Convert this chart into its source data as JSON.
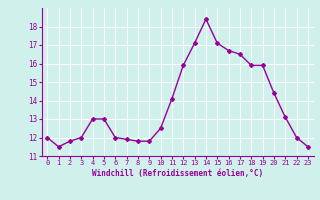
{
  "x": [
    0,
    1,
    2,
    3,
    4,
    5,
    6,
    7,
    8,
    9,
    10,
    11,
    12,
    13,
    14,
    15,
    16,
    17,
    18,
    19,
    20,
    21,
    22,
    23
  ],
  "y": [
    12.0,
    11.5,
    11.8,
    12.0,
    13.0,
    13.0,
    12.0,
    11.9,
    11.8,
    11.8,
    12.5,
    14.1,
    15.9,
    17.1,
    18.4,
    17.1,
    16.7,
    16.5,
    15.9,
    15.9,
    14.4,
    13.1,
    12.0,
    11.5
  ],
  "line_color": "#990099",
  "marker": "D",
  "marker_size": 2.0,
  "line_width": 1.0,
  "bg_color": "#cff0eb",
  "grid_color": "#ffffff",
  "xlabel": "Windchill (Refroidissement éolien,°C)",
  "xlabel_color": "#990099",
  "tick_color": "#990099",
  "xlim": [
    -0.5,
    23.5
  ],
  "ylim": [
    11.0,
    19.0
  ],
  "yticks": [
    11,
    12,
    13,
    14,
    15,
    16,
    17,
    18
  ],
  "xticks": [
    0,
    1,
    2,
    3,
    4,
    5,
    6,
    7,
    8,
    9,
    10,
    11,
    12,
    13,
    14,
    15,
    16,
    17,
    18,
    19,
    20,
    21,
    22,
    23
  ],
  "xtick_labels": [
    "0",
    "1",
    "2",
    "3",
    "4",
    "5",
    "6",
    "7",
    "8",
    "9",
    "10",
    "11",
    "12",
    "13",
    "14",
    "15",
    "16",
    "17",
    "18",
    "19",
    "20",
    "21",
    "22",
    "23"
  ]
}
